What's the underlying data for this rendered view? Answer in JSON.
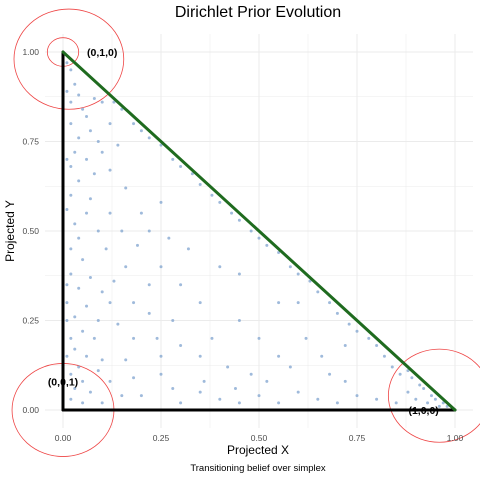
{
  "chart_data": {
    "type": "scatter",
    "title": "Dirichlet Prior Evolution",
    "xlabel": "Projected X",
    "ylabel": "Projected Y",
    "caption": "Transitioning belief over simplex",
    "xlim": [
      0,
      1
    ],
    "ylim": [
      0,
      1
    ],
    "x_ticks": [
      0.0,
      0.25,
      0.5,
      0.75,
      1.0
    ],
    "y_ticks": [
      0.0,
      0.25,
      0.5,
      0.75,
      1.0
    ],
    "x_tick_labels": [
      "0.00",
      "0.25",
      "0.50",
      "0.75",
      "1.00"
    ],
    "y_tick_labels": [
      "0.00",
      "0.25",
      "0.50",
      "0.75",
      "1.00"
    ],
    "grid": true,
    "vertex_labels": [
      {
        "text": "(0,1,0)",
        "x": 0.1,
        "y": 1.0
      },
      {
        "text": "(0,0,1)",
        "x": 0.0,
        "y": 0.08
      },
      {
        "text": "(1,0,0)",
        "x": 0.92,
        "y": 0.0
      }
    ],
    "simplex_edges": [
      {
        "name": "base",
        "from": [
          0,
          0
        ],
        "to": [
          1,
          0
        ],
        "color": "#000000"
      },
      {
        "name": "left",
        "from": [
          0,
          0
        ],
        "to": [
          0,
          1
        ],
        "color": "#000000"
      },
      {
        "name": "hypotenuse",
        "from": [
          0,
          1
        ],
        "to": [
          1,
          0
        ],
        "color": "#1f6b1f"
      }
    ],
    "arcs": [
      {
        "center": [
          0,
          1
        ],
        "r": 0.04
      },
      {
        "center": [
          0.015,
          0.98
        ],
        "r": 0.14
      },
      {
        "center": [
          0,
          0
        ],
        "r": 0.13
      },
      {
        "center": [
          0.96,
          0.04
        ],
        "r": 0.13
      }
    ],
    "colors": {
      "points": "#7fa3cf",
      "arc": "#ee4444",
      "grid": "#ebebeb",
      "edge_dark": "#000000",
      "edge_green": "#1f6b1f"
    },
    "points": [
      [
        0.01,
        0.97
      ],
      [
        0.02,
        0.95
      ],
      [
        0.0,
        0.93
      ],
      [
        0.03,
        0.91
      ],
      [
        0.01,
        0.89
      ],
      [
        0.04,
        0.88
      ],
      [
        0.02,
        0.86
      ],
      [
        0.05,
        0.84
      ],
      [
        0.08,
        0.87
      ],
      [
        0.1,
        0.86
      ],
      [
        0.06,
        0.82
      ],
      [
        0.02,
        0.8
      ],
      [
        0.07,
        0.78
      ],
      [
        0.12,
        0.8
      ],
      [
        0.04,
        0.76
      ],
      [
        0.09,
        0.75
      ],
      [
        0.14,
        0.74
      ],
      [
        0.03,
        0.72
      ],
      [
        0.01,
        0.7
      ],
      [
        0.02,
        0.68
      ],
      [
        0.06,
        0.7
      ],
      [
        0.1,
        0.72
      ],
      [
        0.08,
        0.66
      ],
      [
        0.12,
        0.67
      ],
      [
        0.04,
        0.64
      ],
      [
        0.02,
        0.6
      ],
      [
        0.07,
        0.59
      ],
      [
        0.16,
        0.62
      ],
      [
        0.01,
        0.56
      ],
      [
        0.06,
        0.55
      ],
      [
        0.12,
        0.55
      ],
      [
        0.03,
        0.52
      ],
      [
        0.09,
        0.5
      ],
      [
        0.15,
        0.5
      ],
      [
        0.04,
        0.48
      ],
      [
        0.02,
        0.45
      ],
      [
        0.05,
        0.42
      ],
      [
        0.11,
        0.45
      ],
      [
        0.19,
        0.46
      ],
      [
        0.22,
        0.5
      ],
      [
        0.2,
        0.55
      ],
      [
        0.25,
        0.58
      ],
      [
        0.02,
        0.38
      ],
      [
        0.07,
        0.37
      ],
      [
        0.13,
        0.36
      ],
      [
        0.04,
        0.34
      ],
      [
        0.1,
        0.33
      ],
      [
        0.01,
        0.3
      ],
      [
        0.06,
        0.29
      ],
      [
        0.18,
        0.3
      ],
      [
        0.03,
        0.26
      ],
      [
        0.09,
        0.25
      ],
      [
        0.14,
        0.24
      ],
      [
        0.22,
        0.27
      ],
      [
        0.05,
        0.22
      ],
      [
        0.02,
        0.2
      ],
      [
        0.08,
        0.2
      ],
      [
        0.03,
        0.17
      ],
      [
        0.06,
        0.15
      ],
      [
        0.1,
        0.14
      ],
      [
        0.16,
        0.14
      ],
      [
        0.04,
        0.12
      ],
      [
        0.09,
        0.11
      ],
      [
        0.02,
        0.1
      ],
      [
        0.05,
        0.08
      ],
      [
        0.12,
        0.08
      ],
      [
        0.18,
        0.09
      ],
      [
        0.25,
        0.1
      ],
      [
        0.03,
        0.06
      ],
      [
        0.07,
        0.05
      ],
      [
        0.15,
        0.04
      ],
      [
        0.2,
        0.04
      ],
      [
        0.28,
        0.06
      ],
      [
        0.35,
        0.05
      ],
      [
        0.4,
        0.03
      ],
      [
        0.3,
        0.02
      ],
      [
        0.02,
        0.03
      ],
      [
        0.05,
        0.02
      ],
      [
        0.1,
        0.02
      ],
      [
        0.45,
        0.02
      ],
      [
        0.5,
        0.04
      ],
      [
        0.55,
        0.02
      ],
      [
        0.6,
        0.05
      ],
      [
        0.65,
        0.03
      ],
      [
        0.7,
        0.02
      ],
      [
        0.75,
        0.04
      ],
      [
        0.8,
        0.03
      ],
      [
        0.85,
        0.02
      ],
      [
        0.88,
        0.05
      ],
      [
        0.9,
        0.03
      ],
      [
        0.92,
        0.06
      ],
      [
        0.93,
        0.02
      ],
      [
        0.95,
        0.03
      ],
      [
        0.96,
        0.01
      ],
      [
        0.94,
        0.04
      ],
      [
        0.97,
        0.02
      ],
      [
        0.98,
        0.01
      ],
      [
        0.91,
        0.07
      ],
      [
        0.89,
        0.09
      ],
      [
        0.86,
        0.1
      ],
      [
        0.84,
        0.12
      ],
      [
        0.88,
        0.11
      ],
      [
        0.82,
        0.15
      ],
      [
        0.8,
        0.18
      ],
      [
        0.78,
        0.2
      ],
      [
        0.75,
        0.22
      ],
      [
        0.73,
        0.24
      ],
      [
        0.72,
        0.18
      ],
      [
        0.7,
        0.27
      ],
      [
        0.68,
        0.3
      ],
      [
        0.65,
        0.33
      ],
      [
        0.63,
        0.36
      ],
      [
        0.6,
        0.38
      ],
      [
        0.58,
        0.4
      ],
      [
        0.55,
        0.44
      ],
      [
        0.52,
        0.46
      ],
      [
        0.5,
        0.48
      ],
      [
        0.48,
        0.5
      ],
      [
        0.45,
        0.53
      ],
      [
        0.43,
        0.55
      ],
      [
        0.4,
        0.58
      ],
      [
        0.38,
        0.6
      ],
      [
        0.35,
        0.63
      ],
      [
        0.33,
        0.66
      ],
      [
        0.3,
        0.68
      ],
      [
        0.28,
        0.7
      ],
      [
        0.25,
        0.74
      ],
      [
        0.22,
        0.76
      ],
      [
        0.2,
        0.78
      ],
      [
        0.18,
        0.8
      ],
      [
        0.15,
        0.84
      ],
      [
        0.13,
        0.86
      ],
      [
        0.6,
        0.3
      ],
      [
        0.55,
        0.3
      ],
      [
        0.5,
        0.2
      ],
      [
        0.45,
        0.25
      ],
      [
        0.48,
        0.1
      ],
      [
        0.42,
        0.12
      ],
      [
        0.38,
        0.2
      ],
      [
        0.35,
        0.3
      ],
      [
        0.3,
        0.35
      ],
      [
        0.25,
        0.4
      ],
      [
        0.32,
        0.45
      ],
      [
        0.27,
        0.48
      ],
      [
        0.4,
        0.4
      ],
      [
        0.45,
        0.38
      ],
      [
        0.35,
        0.15
      ],
      [
        0.3,
        0.18
      ],
      [
        0.62,
        0.2
      ],
      [
        0.66,
        0.15
      ],
      [
        0.68,
        0.1
      ],
      [
        0.72,
        0.08
      ],
      [
        0.58,
        0.12
      ],
      [
        0.55,
        0.15
      ],
      [
        0.24,
        0.2
      ],
      [
        0.18,
        0.2
      ],
      [
        0.22,
        0.35
      ],
      [
        0.16,
        0.4
      ],
      [
        0.12,
        0.3
      ],
      [
        0.28,
        0.25
      ],
      [
        0.36,
        0.08
      ],
      [
        0.25,
        0.15
      ],
      [
        0.44,
        0.06
      ],
      [
        0.52,
        0.08
      ],
      [
        0.0,
        0.5
      ],
      [
        0.0,
        0.4
      ],
      [
        0.0,
        0.3
      ],
      [
        0.0,
        0.2
      ],
      [
        0.0,
        0.6
      ],
      [
        0.0,
        0.75
      ],
      [
        0.0,
        0.85
      ],
      [
        0.01,
        0.15
      ],
      [
        0.01,
        0.25
      ],
      [
        0.01,
        0.35
      ],
      [
        0.15,
        0.0
      ],
      [
        0.3,
        0.0
      ],
      [
        0.6,
        0.0
      ],
      [
        0.7,
        0.0
      ],
      [
        0.8,
        0.0
      ]
    ]
  }
}
